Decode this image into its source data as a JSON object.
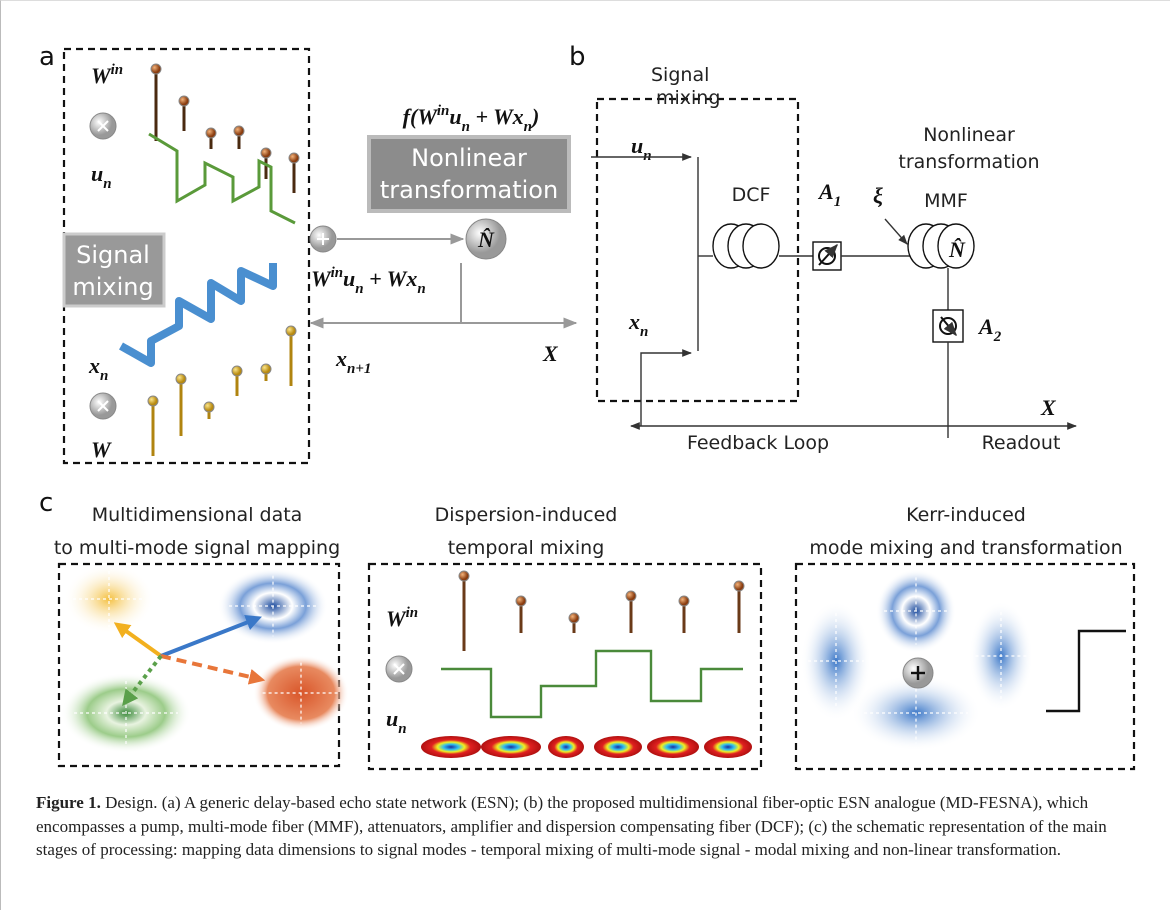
{
  "panel_a": {
    "label": "a",
    "w_in": [
      {
        "t": "W"
      },
      {
        "sup": "in"
      }
    ],
    "u_n": [
      {
        "t": "u"
      },
      {
        "sub": "n"
      }
    ],
    "signal_mixing": [
      "Signal",
      "mixing"
    ],
    "x_n": [
      {
        "t": "x"
      },
      {
        "sub": "n"
      }
    ],
    "w": "W",
    "expression": [
      {
        "t": "f(W"
      },
      {
        "sup": "in"
      },
      {
        "t": "u"
      },
      {
        "sub": "n"
      },
      {
        "t": " + Wx"
      },
      {
        "sub": "n"
      },
      {
        "t": ")"
      }
    ],
    "nonlinear": [
      "Nonlinear",
      "transformation"
    ],
    "operator": "N̂",
    "sum": [
      {
        "t": "W"
      },
      {
        "sup": "in"
      },
      {
        "t": "u"
      },
      {
        "sub": "n"
      },
      {
        "t": " + Wx"
      },
      {
        "sub": "n"
      }
    ],
    "x_next": [
      {
        "t": "x"
      },
      {
        "sub": "n+1"
      }
    ],
    "output": "X"
  },
  "panel_b": {
    "label": "b",
    "signal_mixing": [
      "Signal",
      "mixing"
    ],
    "u_n": [
      {
        "t": "u"
      },
      {
        "sub": "n"
      }
    ],
    "x_n": [
      {
        "t": "x"
      },
      {
        "sub": "n"
      }
    ],
    "dcf": "DCF",
    "a1": [
      {
        "t": "A"
      },
      {
        "sub": "1"
      }
    ],
    "xi": "ξ",
    "nonlinear": [
      "Nonlinear",
      "transformation"
    ],
    "mmf": "MMF",
    "operator": "N̂",
    "a2": [
      {
        "t": "A"
      },
      {
        "sub": "2"
      }
    ],
    "output": "X",
    "feedback": "Feedback Loop",
    "readout": "Readout"
  },
  "panel_c": {
    "label": "c",
    "titles": [
      [
        "Multidimensional data",
        "to multi-mode signal mapping"
      ],
      [
        "Dispersion-induced",
        "temporal mixing"
      ],
      [
        "Kerr-induced",
        "mode mixing and transformation"
      ]
    ],
    "w_in": [
      {
        "t": "W"
      },
      {
        "sup": "in"
      }
    ],
    "u_n": [
      {
        "t": "u"
      },
      {
        "sub": "n"
      }
    ]
  },
  "caption": {
    "label": "Figure 1.",
    "text": " Design. (a) A generic delay-based echo state network (ESN); (b) the proposed multidimensional fiber-optic ESN analogue (MD-FESNA), which encompasses a pump, multi-mode fiber (MMF), attenuators, amplifier and dispersion compensating fiber (DCF); (c) the schematic representation of the main stages of processing: mapping data dimensions to signal modes - temporal mixing of multi-mode signal - modal mixing and non-linear transformation."
  }
}
